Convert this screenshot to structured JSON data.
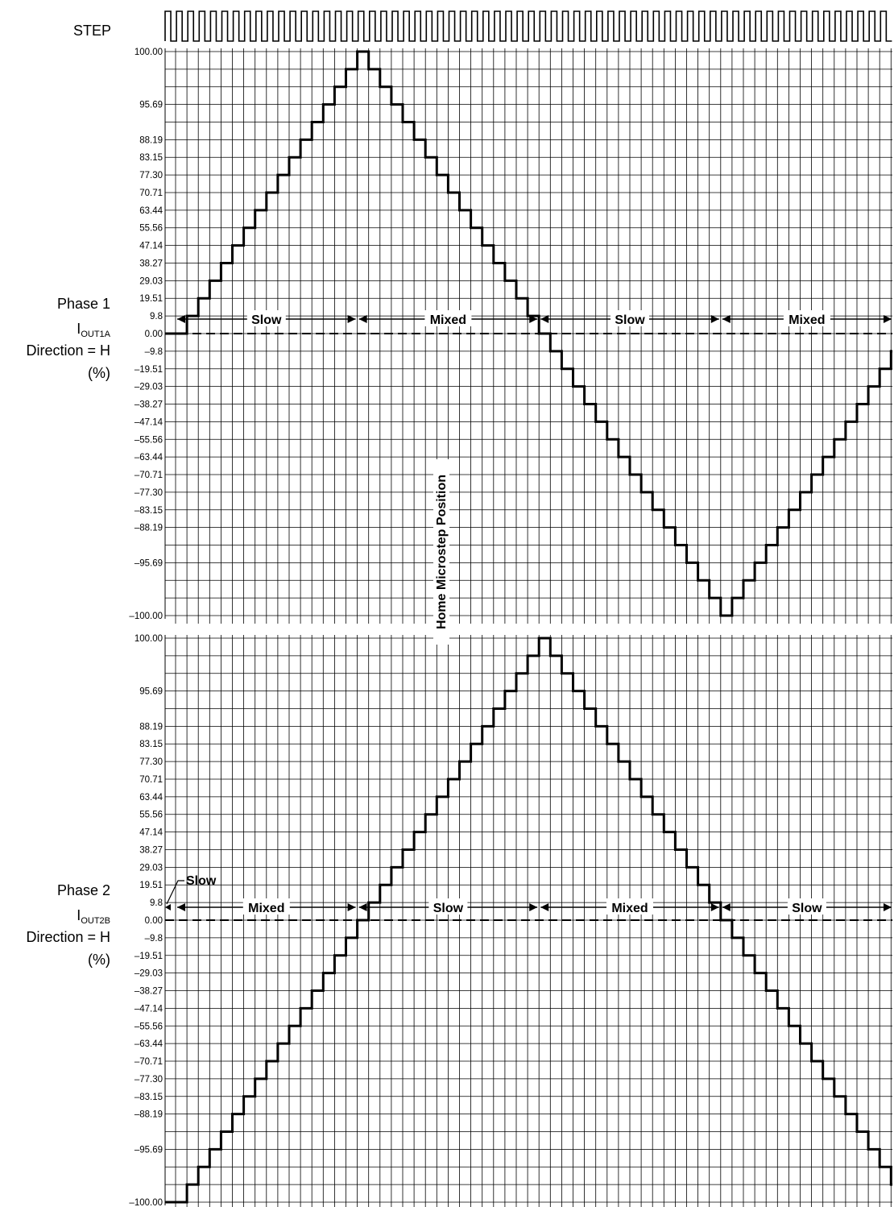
{
  "step_label": "STEP",
  "home_label": "Home Microstep Position",
  "chart_data": [
    {
      "type": "line",
      "step_shape": "staircase",
      "name": "Phase 1",
      "ylabel": {
        "line1": "Phase 1",
        "line2_main": "I",
        "line2_sub": "OUT1A",
        "line3": "Direction = H",
        "line4": "(%)"
      },
      "yticks": [
        "100.00",
        "95.69",
        "88.19",
        "83.15",
        "77.30",
        "70.71",
        "63.44",
        "55.56",
        "47.14",
        "38.27",
        "29.03",
        "19.51",
        "9.8",
        "0.00",
        "–9.8",
        "–19.51",
        "–29.03",
        "–38.27",
        "–47.14",
        "–55.56",
        "–63.44",
        "–70.71",
        "–77.30",
        "–83.15",
        "–88.19",
        "–95.69",
        "–100.00"
      ],
      "ylim": [
        -100,
        100
      ],
      "step_start": 0,
      "step_end": 64,
      "values": [
        0,
        9.8,
        19.51,
        29.03,
        38.27,
        47.14,
        55.56,
        63.44,
        70.71,
        77.3,
        83.15,
        88.19,
        92.39,
        95.69,
        98.08,
        99.52,
        100,
        99.52,
        98.08,
        95.69,
        92.39,
        88.19,
        83.15,
        77.3,
        70.71,
        63.44,
        55.56,
        47.14,
        38.27,
        29.03,
        19.51,
        9.8,
        0,
        -9.8,
        -19.51,
        -29.03,
        -38.27,
        -47.14,
        -55.56,
        -63.44,
        -70.71,
        -77.3,
        -83.15,
        -88.19,
        -92.39,
        -95.69,
        -98.08,
        -99.52,
        -100,
        -99.52,
        -98.08,
        -95.69,
        -92.39,
        -88.19,
        -83.15,
        -77.3,
        -70.71,
        -63.44,
        -55.56,
        -47.14,
        -38.27,
        -29.03,
        -19.51,
        -9.8,
        0
      ],
      "decay_annotations": [
        {
          "label": "Slow",
          "from_step": 0,
          "to_step": 16
        },
        {
          "label": "Mixed",
          "from_step": 16,
          "to_step": 32
        },
        {
          "label": "Slow",
          "from_step": 32,
          "to_step": 48
        },
        {
          "label": "Mixed",
          "from_step": 48,
          "to_step": 64
        }
      ]
    },
    {
      "type": "line",
      "step_shape": "staircase",
      "name": "Phase 2",
      "ylabel": {
        "line1": "Phase 2",
        "line2_main": "I",
        "line2_sub": "OUT2B",
        "line3": "Direction = H",
        "line4": "(%)"
      },
      "yticks": [
        "100.00",
        "95.69",
        "88.19",
        "83.15",
        "77.30",
        "70.71",
        "63.44",
        "55.56",
        "47.14",
        "38.27",
        "29.03",
        "19.51",
        "9.8",
        "0.00",
        "–9.8",
        "–19.51",
        "–29.03",
        "–38.27",
        "–47.14",
        "–55.56",
        "–63.44",
        "–70.71",
        "–77.30",
        "–83.15",
        "–88.19",
        "–95.69",
        "–100.00"
      ],
      "ylim": [
        -100,
        100
      ],
      "step_start": 0,
      "step_end": 64,
      "values": [
        -100,
        -99.52,
        -98.08,
        -95.69,
        -92.39,
        -88.19,
        -83.15,
        -77.3,
        -70.71,
        -63.44,
        -55.56,
        -47.14,
        -38.27,
        -29.03,
        -19.51,
        -9.8,
        0,
        9.8,
        19.51,
        29.03,
        38.27,
        47.14,
        55.56,
        63.44,
        70.71,
        77.3,
        83.15,
        88.19,
        92.39,
        95.69,
        98.08,
        99.52,
        100,
        99.52,
        98.08,
        95.69,
        92.39,
        88.19,
        83.15,
        77.3,
        70.71,
        63.44,
        55.56,
        47.14,
        38.27,
        29.03,
        19.51,
        9.8,
        0,
        -9.8,
        -19.51,
        -29.03,
        -38.27,
        -47.14,
        -55.56,
        -63.44,
        -70.71,
        -77.3,
        -83.15,
        -88.19,
        -92.39,
        -95.69,
        -98.08,
        -99.52,
        -100
      ],
      "decay_annotations": [
        {
          "label": "Slow",
          "from_step": 0,
          "to_step": 0,
          "callout": true
        },
        {
          "label": "Mixed",
          "from_step": 0,
          "to_step": 16
        },
        {
          "label": "Slow",
          "from_step": 16,
          "to_step": 32
        },
        {
          "label": "Mixed",
          "from_step": 32,
          "to_step": 48
        },
        {
          "label": "Slow",
          "from_step": 48,
          "to_step": 64
        }
      ]
    }
  ]
}
